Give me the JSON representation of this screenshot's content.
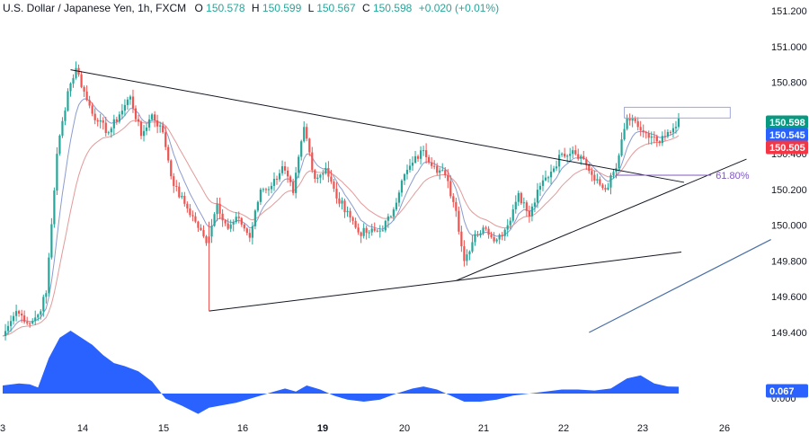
{
  "header": {
    "symbol": "U.S. Dollar / Japanese Yen, 1h, FXCM",
    "open_label": "O",
    "open": "150.578",
    "high_label": "H",
    "high": "150.599",
    "low_label": "L",
    "low": "150.567",
    "close_label": "C",
    "close": "150.598",
    "change": "+0.020 (+0.01%)"
  },
  "colors": {
    "up": "#26a69a",
    "down": "#ef5350",
    "trendline": "#131722",
    "blue_line": "#4a6fa5",
    "ma_fast": "#8a9bd0",
    "ma_slow": "#e29a9a",
    "fib": "#7e57c2",
    "oscillator": "#2962ff",
    "badge_green": "#089981",
    "badge_blue": "#2962ff",
    "badge_red": "#f23645"
  },
  "chart_data": {
    "type": "candlestick",
    "ylim": [
      149.3,
      151.25
    ],
    "y_ticks": [
      "151.200",
      "151.000",
      "150.800",
      "150.400",
      "150.200",
      "150.000",
      "149.800",
      "149.600",
      "149.400"
    ],
    "x_ticks": [
      "3",
      "14",
      "15",
      "16",
      "19",
      "20",
      "21",
      "22",
      "23",
      "26"
    ],
    "price_labels": [
      {
        "label": "150.598",
        "value": 150.598,
        "color": "badge_green"
      },
      {
        "label": "150.545",
        "value": 150.545,
        "color": "badge_blue"
      },
      {
        "label": "150.505",
        "value": 150.505,
        "color": "badge_red"
      }
    ],
    "fib_label": "61.80%",
    "fib_value": 150.28,
    "anchors": [
      [
        0,
        149.38
      ],
      [
        5,
        149.52
      ],
      [
        10,
        149.45
      ],
      [
        13,
        149.5
      ],
      [
        16,
        149.62
      ],
      [
        20,
        150.4
      ],
      [
        24,
        150.75
      ],
      [
        27,
        150.88
      ],
      [
        31,
        150.7
      ],
      [
        35,
        150.58
      ],
      [
        39,
        150.52
      ],
      [
        43,
        150.62
      ],
      [
        47,
        150.72
      ],
      [
        51,
        150.5
      ],
      [
        55,
        150.62
      ],
      [
        59,
        150.52
      ],
      [
        63,
        150.22
      ],
      [
        67,
        150.12
      ],
      [
        71,
        150.02
      ],
      [
        75,
        149.9
      ],
      [
        79,
        150.12
      ],
      [
        83,
        149.98
      ],
      [
        87,
        150.04
      ],
      [
        91,
        149.93
      ],
      [
        95,
        150.2
      ],
      [
        99,
        150.22
      ],
      [
        103,
        150.33
      ],
      [
        107,
        150.18
      ],
      [
        111,
        150.55
      ],
      [
        115,
        150.26
      ],
      [
        119,
        150.32
      ],
      [
        123,
        150.15
      ],
      [
        127,
        150.08
      ],
      [
        131,
        149.96
      ],
      [
        135,
        149.96
      ],
      [
        139,
        149.97
      ],
      [
        143,
        150.05
      ],
      [
        147,
        150.25
      ],
      [
        151,
        150.35
      ],
      [
        155,
        150.42
      ],
      [
        159,
        150.33
      ],
      [
        163,
        150.28
      ],
      [
        167,
        150.08
      ],
      [
        170,
        149.8
      ],
      [
        174,
        149.95
      ],
      [
        178,
        149.98
      ],
      [
        182,
        149.92
      ],
      [
        186,
        150.0
      ],
      [
        190,
        150.18
      ],
      [
        194,
        150.05
      ],
      [
        198,
        150.22
      ],
      [
        202,
        150.3
      ],
      [
        206,
        150.4
      ],
      [
        210,
        150.42
      ],
      [
        214,
        150.37
      ],
      [
        218,
        150.25
      ],
      [
        222,
        150.2
      ],
      [
        226,
        150.32
      ],
      [
        230,
        150.6
      ],
      [
        234,
        150.55
      ],
      [
        238,
        150.49
      ],
      [
        242,
        150.46
      ],
      [
        246,
        150.52
      ],
      [
        249,
        150.598
      ]
    ],
    "oscillator": {
      "zero_value": 0.0,
      "last_value": 0.067,
      "last_label": "0.067",
      "points": [
        [
          0,
          0.08
        ],
        [
          6,
          0.1
        ],
        [
          10,
          0.09
        ],
        [
          13,
          0.06
        ],
        [
          17,
          0.35
        ],
        [
          21,
          0.55
        ],
        [
          25,
          0.62
        ],
        [
          29,
          0.55
        ],
        [
          33,
          0.48
        ],
        [
          37,
          0.38
        ],
        [
          41,
          0.3
        ],
        [
          45,
          0.27
        ],
        [
          50,
          0.22
        ],
        [
          55,
          0.12
        ],
        [
          60,
          -0.05
        ],
        [
          66,
          -0.12
        ],
        [
          72,
          -0.2
        ],
        [
          76,
          -0.14
        ],
        [
          80,
          -0.12
        ],
        [
          86,
          -0.09
        ],
        [
          90,
          -0.06
        ],
        [
          95,
          -0.02
        ],
        [
          100,
          0.02
        ],
        [
          104,
          0.05
        ],
        [
          108,
          0.02
        ],
        [
          112,
          0.08
        ],
        [
          117,
          0.04
        ],
        [
          122,
          -0.02
        ],
        [
          127,
          -0.06
        ],
        [
          133,
          -0.08
        ],
        [
          139,
          -0.06
        ],
        [
          145,
          0.0
        ],
        [
          151,
          0.05
        ],
        [
          155,
          0.07
        ],
        [
          160,
          0.04
        ],
        [
          165,
          -0.02
        ],
        [
          170,
          -0.08
        ],
        [
          176,
          -0.08
        ],
        [
          182,
          -0.06
        ],
        [
          188,
          -0.02
        ],
        [
          194,
          0.0
        ],
        [
          200,
          0.02
        ],
        [
          206,
          0.04
        ],
        [
          212,
          0.04
        ],
        [
          218,
          0.03
        ],
        [
          224,
          0.05
        ],
        [
          230,
          0.15
        ],
        [
          235,
          0.18
        ],
        [
          240,
          0.1
        ],
        [
          245,
          0.07
        ],
        [
          249,
          0.067
        ]
      ]
    }
  }
}
